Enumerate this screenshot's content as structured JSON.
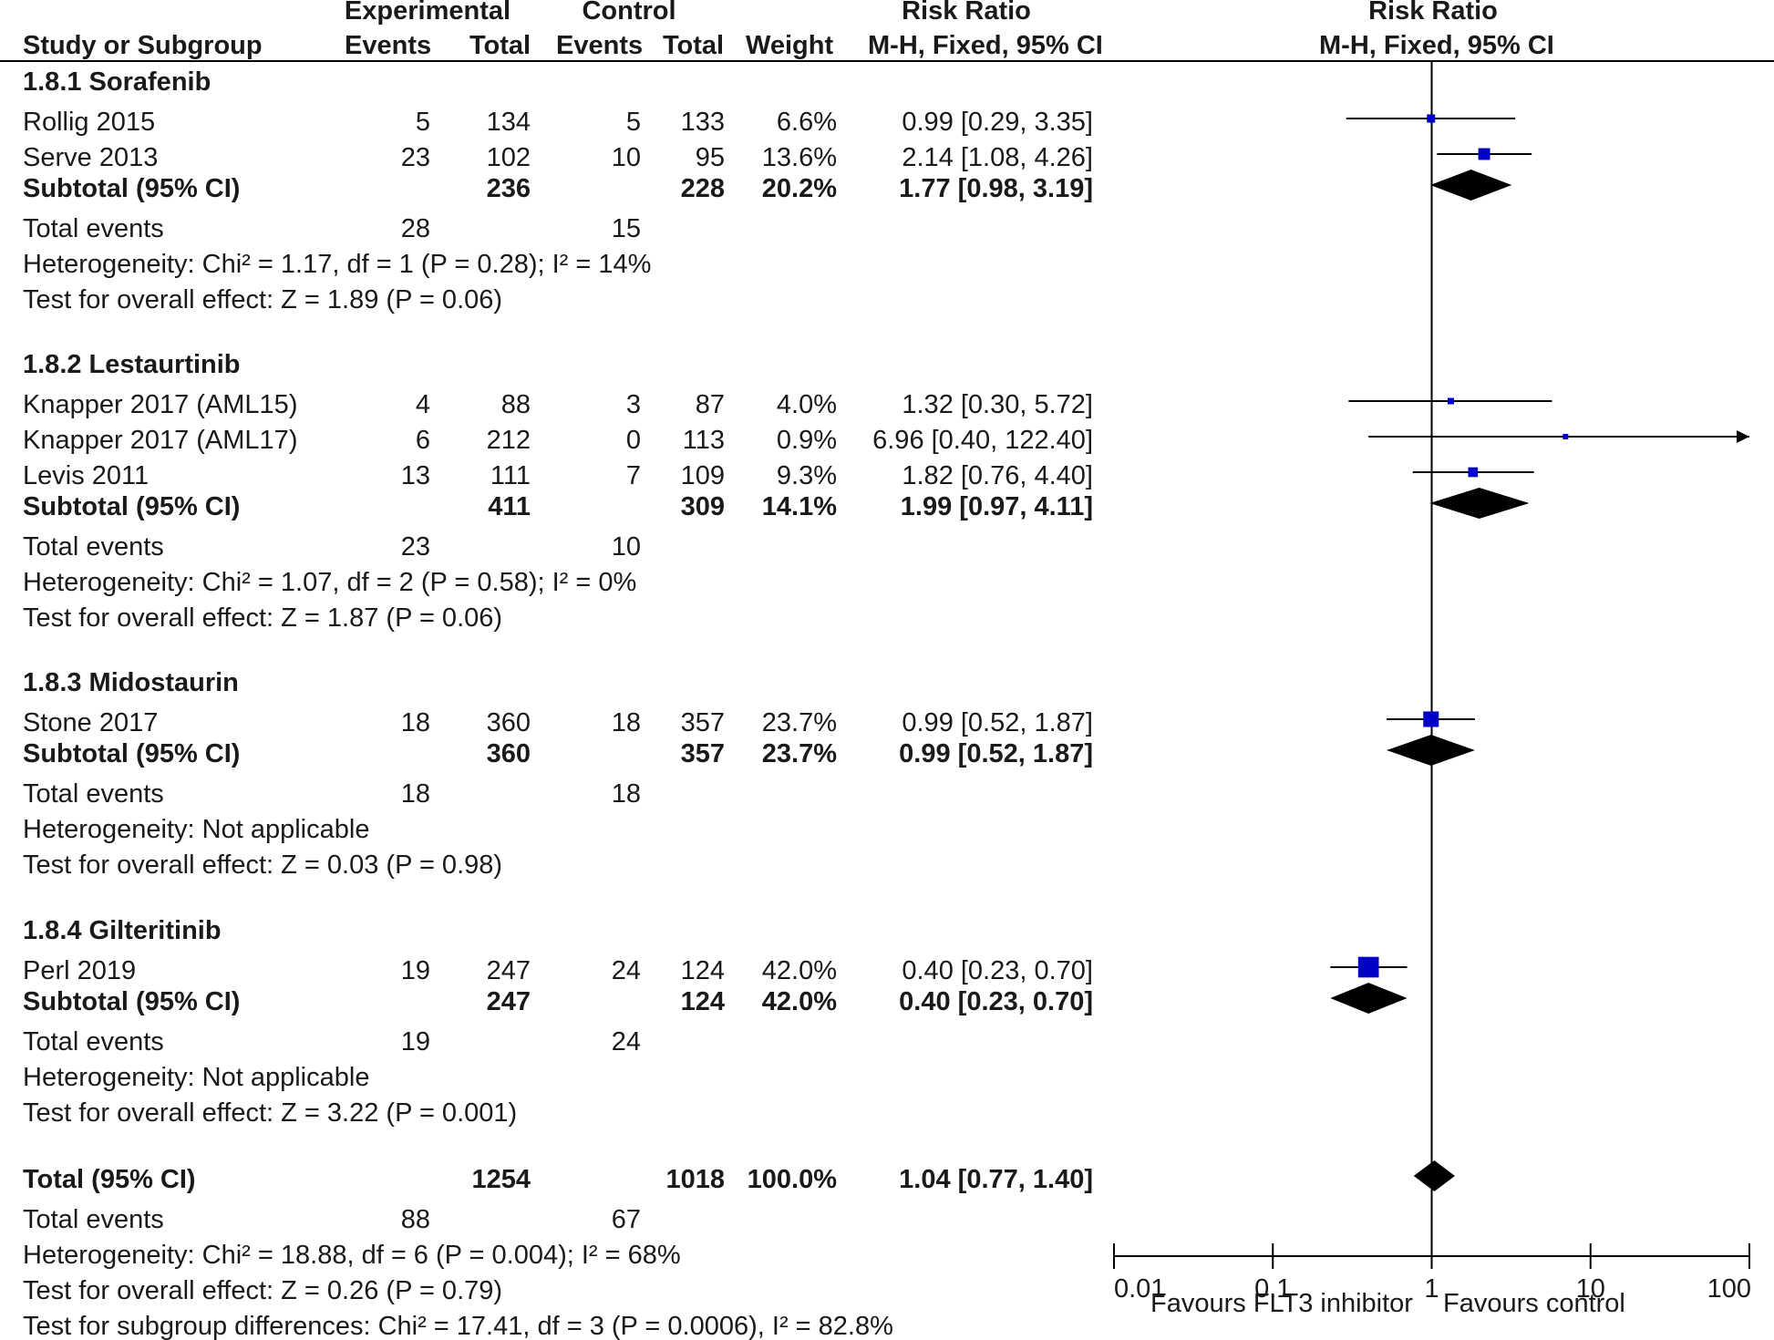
{
  "header": {
    "experimental": "Experimental",
    "control": "Control",
    "risk_ratio": "Risk Ratio",
    "risk_ratio_plot": "Risk Ratio",
    "study_col": "Study or Subgroup",
    "exp_events": "Events",
    "exp_total": "Total",
    "ctl_events": "Events",
    "ctl_total": "Total",
    "weight": "Weight",
    "method": "M-H, Fixed, 95% CI",
    "method_plot": "M-H, Fixed, 95% CI"
  },
  "rows": [
    {
      "kind": "group",
      "label": "1.8.1 Sorafenib"
    },
    {
      "kind": "study",
      "label": "Rollig 2015",
      "e1": "5",
      "t1": "134",
      "e2": "5",
      "t2": "133",
      "w": "6.6%",
      "ci": "0.99 [0.29, 3.35]"
    },
    {
      "kind": "study",
      "label": "Serve 2013",
      "e1": "23",
      "t1": "102",
      "e2": "10",
      "t2": "95",
      "w": "13.6%",
      "ci": "2.14 [1.08, 4.26]"
    },
    {
      "kind": "subtotal",
      "label": "Subtotal (95% CI)",
      "t1": "236",
      "t2": "228",
      "w": "20.2%",
      "ci": "1.77 [0.98, 3.19]"
    },
    {
      "kind": "events",
      "label": "Total events",
      "e1": "28",
      "e2": "15"
    },
    {
      "kind": "note",
      "label": "Heterogeneity: Chi² = 1.17, df = 1 (P = 0.28); I² = 14%"
    },
    {
      "kind": "note",
      "label": "Test for overall effect: Z = 1.89 (P = 0.06)"
    },
    {
      "kind": "group",
      "label": "1.8.2 Lestaurtinib"
    },
    {
      "kind": "study",
      "label": "Knapper 2017 (AML15)",
      "e1": "4",
      "t1": "88",
      "e2": "3",
      "t2": "87",
      "w": "4.0%",
      "ci": "1.32 [0.30, 5.72]"
    },
    {
      "kind": "study",
      "label": "Knapper 2017 (AML17)",
      "e1": "6",
      "t1": "212",
      "e2": "0",
      "t2": "113",
      "w": "0.9%",
      "ci": "6.96 [0.40, 122.40]"
    },
    {
      "kind": "study",
      "label": "Levis 2011",
      "e1": "13",
      "t1": "111",
      "e2": "7",
      "t2": "109",
      "w": "9.3%",
      "ci": "1.82 [0.76, 4.40]"
    },
    {
      "kind": "subtotal",
      "label": "Subtotal (95% CI)",
      "t1": "411",
      "t2": "309",
      "w": "14.1%",
      "ci": "1.99 [0.97, 4.11]"
    },
    {
      "kind": "events",
      "label": "Total events",
      "e1": "23",
      "e2": "10"
    },
    {
      "kind": "note",
      "label": "Heterogeneity: Chi² = 1.07, df = 2 (P = 0.58); I² = 0%"
    },
    {
      "kind": "note",
      "label": "Test for overall effect: Z = 1.87 (P = 0.06)"
    },
    {
      "kind": "group",
      "label": "1.8.3 Midostaurin"
    },
    {
      "kind": "study",
      "label": "Stone 2017",
      "e1": "18",
      "t1": "360",
      "e2": "18",
      "t2": "357",
      "w": "23.7%",
      "ci": "0.99 [0.52, 1.87]"
    },
    {
      "kind": "subtotal",
      "label": "Subtotal (95% CI)",
      "t1": "360",
      "t2": "357",
      "w": "23.7%",
      "ci": "0.99 [0.52, 1.87]"
    },
    {
      "kind": "events",
      "label": "Total events",
      "e1": "18",
      "e2": "18"
    },
    {
      "kind": "note",
      "label": "Heterogeneity: Not applicable"
    },
    {
      "kind": "note",
      "label": "Test for overall effect: Z = 0.03 (P = 0.98)"
    },
    {
      "kind": "group",
      "label": "1.8.4 Gilteritinib"
    },
    {
      "kind": "study",
      "label": "Perl 2019",
      "e1": "19",
      "t1": "247",
      "e2": "24",
      "t2": "124",
      "w": "42.0%",
      "ci": "0.40 [0.23, 0.70]"
    },
    {
      "kind": "subtotal",
      "label": "Subtotal (95% CI)",
      "t1": "247",
      "t2": "124",
      "w": "42.0%",
      "ci": "0.40 [0.23, 0.70]"
    },
    {
      "kind": "events",
      "label": "Total events",
      "e1": "19",
      "e2": "24"
    },
    {
      "kind": "note",
      "label": "Heterogeneity: Not applicable"
    },
    {
      "kind": "note",
      "label": "Test for overall effect: Z = 3.22 (P = 0.001)"
    },
    {
      "kind": "total",
      "label": "Total (95% CI)",
      "t1": "1254",
      "t2": "1018",
      "w": "100.0%",
      "ci": "1.04 [0.77, 1.40]"
    },
    {
      "kind": "events",
      "label": "Total events",
      "e1": "88",
      "e2": "67"
    },
    {
      "kind": "note",
      "label": "Heterogeneity: Chi² = 18.88, df = 6 (P = 0.004); I² = 68%"
    },
    {
      "kind": "note",
      "label": "Test for overall effect: Z = 0.26 (P = 0.79)"
    },
    {
      "kind": "note",
      "label": "Test for subgroup differences: Chi² = 17.41, df = 3 (P = 0.0006), I² = 82.8%"
    }
  ],
  "chart_data": {
    "type": "forest",
    "title": "Risk Ratio M-H, Fixed, 95% CI",
    "x_scale": "log",
    "x_ticks": [
      0.01,
      0.1,
      1,
      10,
      100
    ],
    "x_tick_labels": [
      "0.01",
      "0.1",
      "1",
      "10",
      "100"
    ],
    "xlim": [
      0.01,
      100
    ],
    "reference_line": 1,
    "label_left": "Favours FLT3 inhibitor",
    "label_right": "Favours control",
    "studies": [
      {
        "name": "Rollig 2015",
        "rr": 0.99,
        "lo": 0.29,
        "hi": 3.35,
        "weight": 6.6
      },
      {
        "name": "Serve 2013",
        "rr": 2.14,
        "lo": 1.08,
        "hi": 4.26,
        "weight": 13.6
      },
      {
        "name": "Knapper 2017 (AML15)",
        "rr": 1.32,
        "lo": 0.3,
        "hi": 5.72,
        "weight": 4.0
      },
      {
        "name": "Knapper 2017 (AML17)",
        "rr": 6.96,
        "lo": 0.4,
        "hi": 122.4,
        "weight": 0.9
      },
      {
        "name": "Levis 2011",
        "rr": 1.82,
        "lo": 0.76,
        "hi": 4.4,
        "weight": 9.3
      },
      {
        "name": "Stone 2017",
        "rr": 0.99,
        "lo": 0.52,
        "hi": 1.87,
        "weight": 23.7
      },
      {
        "name": "Perl 2019",
        "rr": 0.4,
        "lo": 0.23,
        "hi": 0.7,
        "weight": 42.0
      }
    ],
    "subtotals": [
      {
        "name": "1.8.1 Sorafenib",
        "rr": 1.77,
        "lo": 0.98,
        "hi": 3.19
      },
      {
        "name": "1.8.2 Lestaurtinib",
        "rr": 1.99,
        "lo": 0.97,
        "hi": 4.11
      },
      {
        "name": "1.8.3 Midostaurin",
        "rr": 0.99,
        "lo": 0.52,
        "hi": 1.87
      },
      {
        "name": "1.8.4 Gilteritinib",
        "rr": 0.4,
        "lo": 0.23,
        "hi": 0.7
      }
    ],
    "overall": {
      "name": "Total (95% CI)",
      "rr": 1.04,
      "lo": 0.77,
      "hi": 1.4
    },
    "colors": {
      "study_marker": "#0000c8",
      "diamond": "#000000",
      "line": "#000000"
    }
  }
}
